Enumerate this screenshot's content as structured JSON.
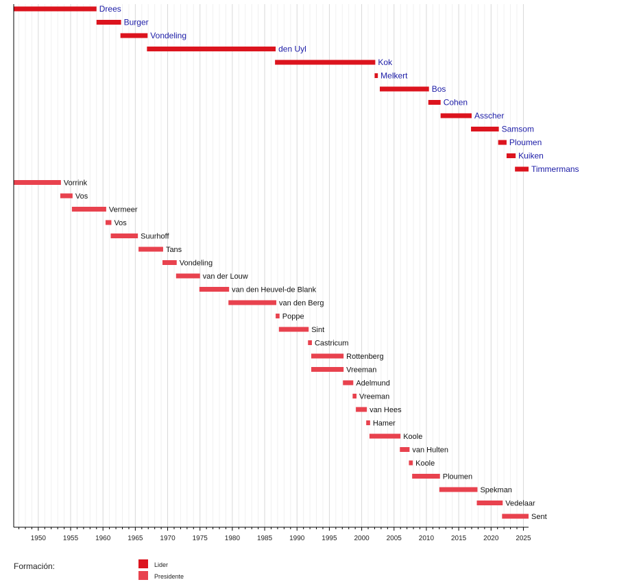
{
  "chart_data": {
    "type": "timeline",
    "title": "",
    "xlabel": "",
    "ylabel": "",
    "xlim": [
      1946.2,
      2025.8
    ],
    "x_ticks": [
      1950,
      1955,
      1960,
      1965,
      1970,
      1975,
      1980,
      1985,
      1990,
      1995,
      2000,
      2005,
      2010,
      2015,
      2020,
      2025
    ],
    "grid": true,
    "colors": {
      "Lider": "#dc141e",
      "Presidente": "#e8424e",
      "lider_text": "#1a1aa6"
    },
    "legend": {
      "title": "Formación:",
      "entries": [
        "Lider",
        "Presidente"
      ],
      "placement": "bottom"
    },
    "series": [
      {
        "name": "Lider",
        "items": [
          {
            "label": "Drees",
            "start": 1946.2,
            "end": 1959.0
          },
          {
            "label": "Burger",
            "start": 1959.0,
            "end": 1962.8
          },
          {
            "label": "Vondeling",
            "start": 1962.7,
            "end": 1966.9
          },
          {
            "label": "den Uyl",
            "start": 1966.8,
            "end": 1986.7
          },
          {
            "label": "Kok",
            "start": 1986.6,
            "end": 2002.1
          },
          {
            "label": "Melkert",
            "start": 2002.0,
            "end": 2002.5
          },
          {
            "label": "Bos",
            "start": 2002.8,
            "end": 2010.4
          },
          {
            "label": "Cohen",
            "start": 2010.3,
            "end": 2012.2
          },
          {
            "label": "Asscher",
            "start": 2012.2,
            "end": 2017.0
          },
          {
            "label": "Samsom",
            "start": 2016.9,
            "end": 2021.2
          },
          {
            "label": "Ploumen",
            "start": 2021.1,
            "end": 2022.4
          },
          {
            "label": "Kuiken",
            "start": 2022.4,
            "end": 2023.8
          },
          {
            "label": "Timmermans",
            "start": 2023.7,
            "end": 2025.8
          }
        ]
      },
      {
        "name": "Presidente",
        "items": [
          {
            "label": "Vorrink",
            "start": 1946.2,
            "end": 1953.5
          },
          {
            "label": "Vos",
            "start": 1953.4,
            "end": 1955.3
          },
          {
            "label": "Vermeer",
            "start": 1955.2,
            "end": 1960.5
          },
          {
            "label": "Vos",
            "start": 1960.4,
            "end": 1961.3
          },
          {
            "label": "Suurhoff",
            "start": 1961.2,
            "end": 1965.4
          },
          {
            "label": "Tans",
            "start": 1965.5,
            "end": 1969.3
          },
          {
            "label": "Vondeling",
            "start": 1969.2,
            "end": 1971.4
          },
          {
            "label": "van der Louw",
            "start": 1971.3,
            "end": 1975.0
          },
          {
            "label": "van den Heuvel-de Blank",
            "start": 1974.9,
            "end": 1979.5
          },
          {
            "label": "van den Berg",
            "start": 1979.4,
            "end": 1986.8
          },
          {
            "label": "Poppe",
            "start": 1986.7,
            "end": 1987.3
          },
          {
            "label": "Sint",
            "start": 1987.2,
            "end": 1991.8
          },
          {
            "label": "Castricum",
            "start": 1991.7,
            "end": 1992.3
          },
          {
            "label": "Rottenberg",
            "start": 1992.2,
            "end": 1997.2
          },
          {
            "label": "Vreeman",
            "start": 1992.2,
            "end": 1997.2
          },
          {
            "label": "Adelmund",
            "start": 1997.1,
            "end": 1998.7
          },
          {
            "label": "Vreeman",
            "start": 1998.6,
            "end": 1999.2
          },
          {
            "label": "van Hees",
            "start": 1999.1,
            "end": 2000.8
          },
          {
            "label": "Hamer",
            "start": 2000.7,
            "end": 2001.3
          },
          {
            "label": "Koole",
            "start": 2001.2,
            "end": 2006.0
          },
          {
            "label": "van Hulten",
            "start": 2005.9,
            "end": 2007.4
          },
          {
            "label": "Koole",
            "start": 2007.3,
            "end": 2007.9
          },
          {
            "label": "Ploumen",
            "start": 2007.8,
            "end": 2012.1
          },
          {
            "label": "Spekman",
            "start": 2012.0,
            "end": 2017.9
          },
          {
            "label": "Vedelaar",
            "start": 2017.8,
            "end": 2021.8
          },
          {
            "label": "Sent",
            "start": 2021.7,
            "end": 2025.8
          }
        ]
      }
    ]
  }
}
